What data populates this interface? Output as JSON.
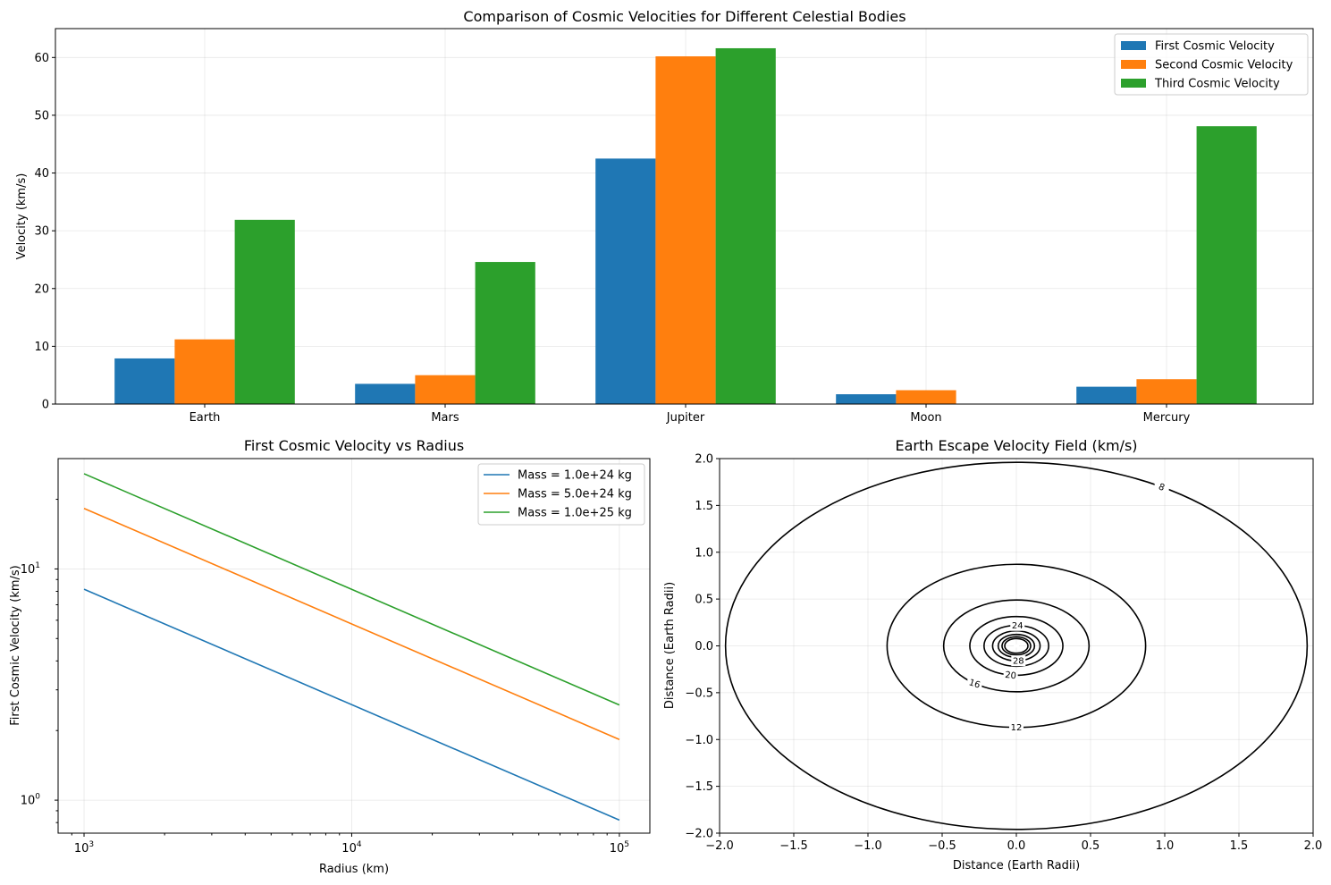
{
  "chart_data": [
    {
      "type": "bar",
      "title": "Comparison of Cosmic Velocities for Different Celestial Bodies",
      "xlabel": "",
      "ylabel": "Velocity (km/s)",
      "categories": [
        "Earth",
        "Mars",
        "Jupiter",
        "Moon",
        "Mercury"
      ],
      "series": [
        {
          "name": "First Cosmic Velocity",
          "color": "#1f77b4",
          "values": [
            7.9,
            3.5,
            42.5,
            1.7,
            3.0
          ]
        },
        {
          "name": "Second Cosmic Velocity",
          "color": "#ff7f0e",
          "values": [
            11.2,
            5.0,
            60.2,
            2.4,
            4.3
          ]
        },
        {
          "name": "Third Cosmic Velocity",
          "color": "#2ca02c",
          "values": [
            31.9,
            24.6,
            61.6,
            0,
            48.1
          ]
        }
      ],
      "ylim": [
        0,
        65
      ],
      "yticks": [
        0,
        10,
        20,
        30,
        40,
        50,
        60
      ],
      "grid": true,
      "legend": "top-right"
    },
    {
      "type": "line",
      "title": "First Cosmic Velocity vs Radius",
      "xlabel": "Radius (km)",
      "ylabel": "First Cosmic Velocity (km/s)",
      "xscale": "log",
      "yscale": "log",
      "xlim": [
        800,
        130000
      ],
      "ylim": [
        0.72,
        30
      ],
      "xticks": [
        {
          "base": "10",
          "exp": "3",
          "value": 1000
        },
        {
          "base": "10",
          "exp": "4",
          "value": 10000
        },
        {
          "base": "10",
          "exp": "5",
          "value": 100000
        }
      ],
      "yticks": [
        {
          "base": "10",
          "exp": "0",
          "value": 1
        },
        {
          "base": "10",
          "exp": "1",
          "value": 10
        }
      ],
      "x": [
        1000,
        100000
      ],
      "series": [
        {
          "name": "Mass = 1.0e+24 kg",
          "color": "#1f77b4",
          "values": [
            8.17,
            0.82
          ]
        },
        {
          "name": "Mass = 5.0e+24 kg",
          "color": "#ff7f0e",
          "values": [
            18.27,
            1.83
          ]
        },
        {
          "name": "Mass = 1.0e+25 kg",
          "color": "#2ca02c",
          "values": [
            25.8,
            2.58
          ]
        }
      ],
      "grid": true,
      "legend": "top-right"
    },
    {
      "type": "contour",
      "title": "Earth Escape Velocity Field (km/s)",
      "xlabel": "Distance (Earth Radii)",
      "ylabel": "Distance (Earth Radii)",
      "xlim": [
        -2.0,
        2.0
      ],
      "ylim": [
        -2.0,
        2.0
      ],
      "xticks": [
        "−2.0",
        "−1.5",
        "−1.0",
        "−0.5",
        "0.0",
        "0.5",
        "1.0",
        "1.5",
        "2.0"
      ],
      "yticks": [
        "−2.0",
        "−1.5",
        "−1.0",
        "−0.5",
        "0.0",
        "0.5",
        "1.0",
        "1.5",
        "2.0"
      ],
      "levels": [
        8,
        12,
        16,
        20,
        24,
        28,
        32,
        36,
        40
      ],
      "grid": true
    }
  ]
}
